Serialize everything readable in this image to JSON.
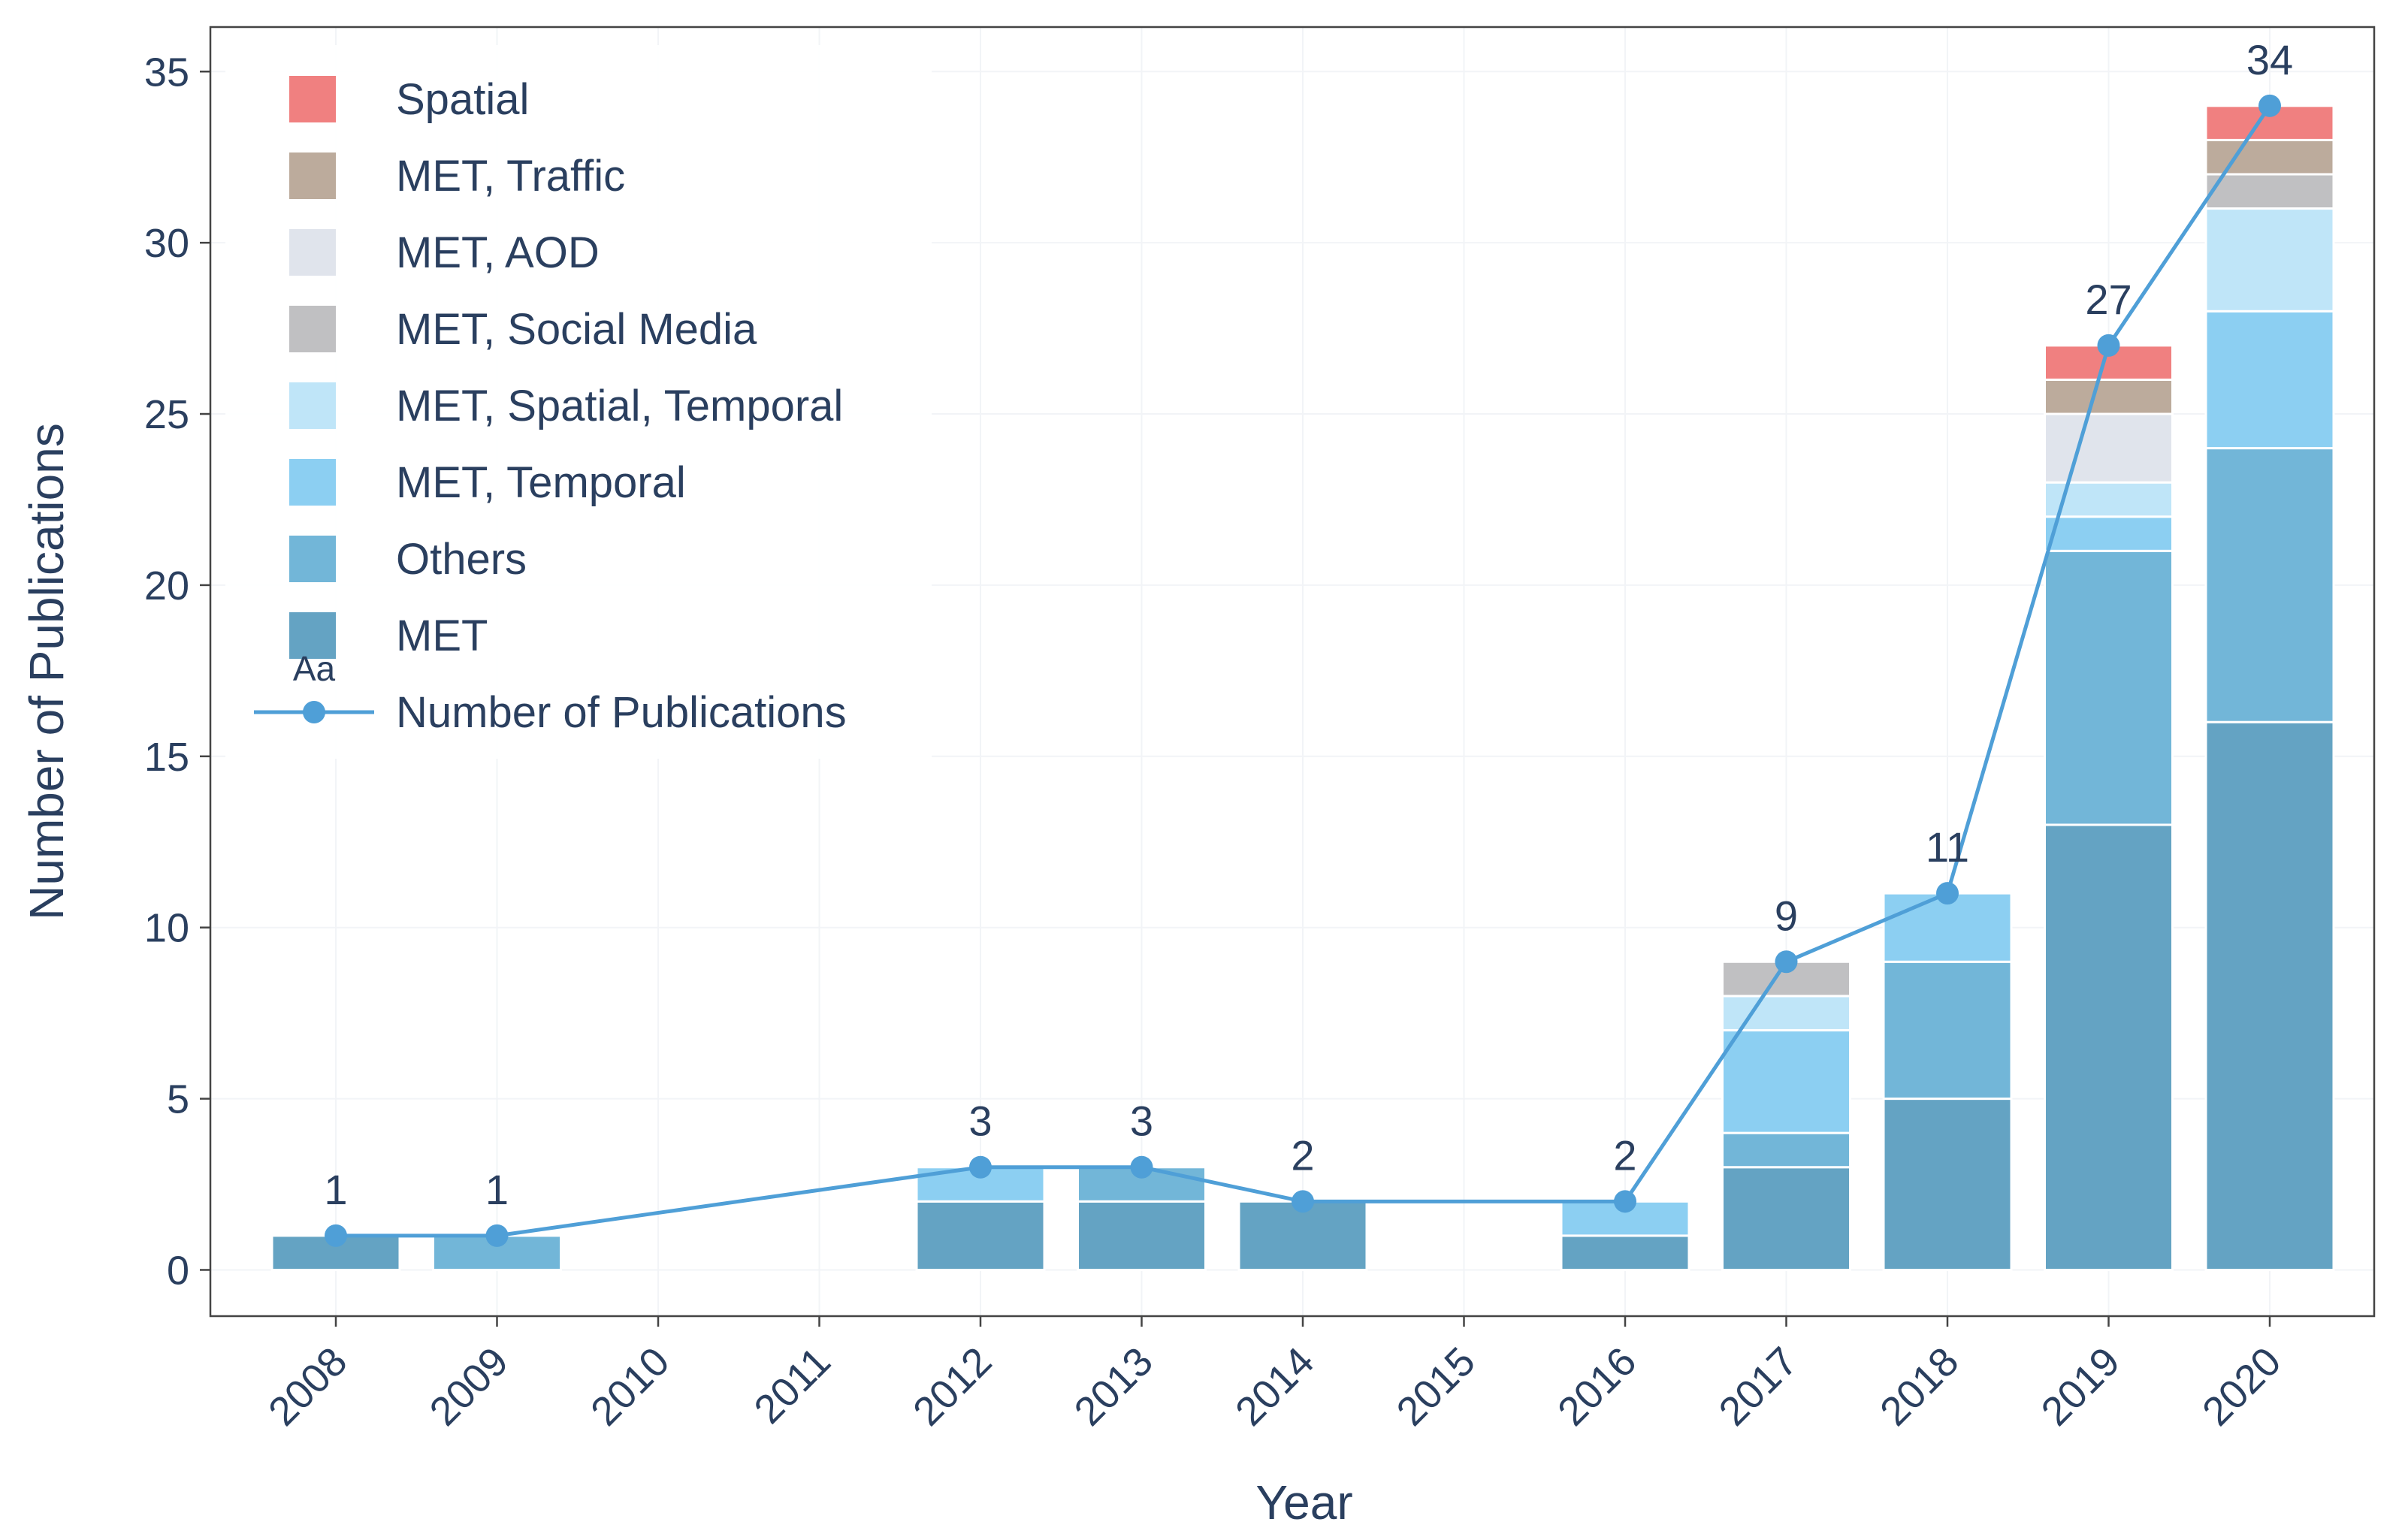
{
  "chart_data": {
    "type": "bar",
    "stacked": true,
    "title": "",
    "xlabel": "Year",
    "ylabel": "Number of Publications",
    "ylim": [
      -1.35,
      36.3
    ],
    "yticks": [
      0,
      5,
      10,
      15,
      20,
      25,
      30,
      35
    ],
    "categories": [
      "2008",
      "2009",
      "2010",
      "2011",
      "2012",
      "2013",
      "2014",
      "2015",
      "2016",
      "2017",
      "2018",
      "2019",
      "2020"
    ],
    "series": [
      {
        "name": "MET",
        "color": "#64a3c3",
        "values": [
          1,
          0,
          0,
          0,
          2,
          2,
          2,
          0,
          1,
          3,
          5,
          13,
          16
        ]
      },
      {
        "name": "Others",
        "color": "#72b6d8",
        "values": [
          0,
          1,
          0,
          0,
          0,
          1,
          0,
          0,
          0,
          1,
          4,
          8,
          8
        ]
      },
      {
        "name": "MET, Temporal",
        "color": "#8ccff2",
        "values": [
          0,
          0,
          0,
          0,
          1,
          0,
          0,
          0,
          1,
          3,
          2,
          1,
          4
        ]
      },
      {
        "name": "MET, Spatial, Temporal",
        "color": "#bfe5f8",
        "values": [
          0,
          0,
          0,
          0,
          0,
          0,
          0,
          0,
          0,
          1,
          0,
          1,
          3
        ]
      },
      {
        "name": "MET, Social Media",
        "color": "#c0c0c2",
        "values": [
          0,
          0,
          0,
          0,
          0,
          0,
          0,
          0,
          0,
          1,
          0,
          0,
          1
        ]
      },
      {
        "name": "MET, AOD",
        "color": "#e0e4ec",
        "values": [
          0,
          0,
          0,
          0,
          0,
          0,
          0,
          0,
          0,
          0,
          0,
          2,
          0
        ]
      },
      {
        "name": "MET, Traffic",
        "color": "#bcab9c",
        "values": [
          0,
          0,
          0,
          0,
          0,
          0,
          0,
          0,
          0,
          0,
          0,
          1,
          1
        ]
      },
      {
        "name": "Spatial",
        "color": "#f08080",
        "values": [
          0,
          0,
          0,
          0,
          0,
          0,
          0,
          0,
          0,
          0,
          0,
          1,
          1
        ]
      }
    ],
    "line": {
      "name": "Number of Publications",
      "color": "#4f9fd7",
      "x": [
        "2008",
        "2009",
        "2012",
        "2013",
        "2014",
        "2016",
        "2017",
        "2018",
        "2019",
        "2020"
      ],
      "values": [
        1,
        1,
        3,
        3,
        2,
        2,
        9,
        11,
        27,
        34
      ],
      "labels": [
        "1",
        "1",
        "3",
        "3",
        "2",
        "2",
        "9",
        "11",
        "27",
        "34"
      ]
    },
    "legend": {
      "position": "top-left",
      "order": [
        "Spatial",
        "MET, Traffic",
        "MET, AOD",
        "MET, Social Media",
        "MET, Spatial, Temporal",
        "MET, Temporal",
        "Others",
        "MET",
        "Number of Publications"
      ],
      "line_marker_hint": "Aa"
    }
  }
}
